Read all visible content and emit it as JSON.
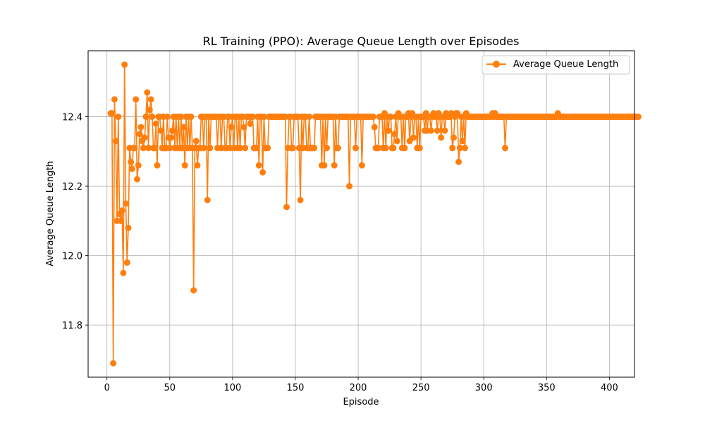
{
  "chart_data": {
    "type": "line",
    "title": "RL Training (PPO): Average Queue Length over Episodes",
    "xlabel": "Episode",
    "ylabel": "Average Queue Length",
    "xlim": [
      -15,
      420
    ],
    "ylim": [
      11.65,
      12.59
    ],
    "x_ticks": [
      0,
      50,
      100,
      150,
      200,
      250,
      300,
      350,
      400
    ],
    "y_ticks": [
      11.8,
      12.0,
      12.2,
      12.4
    ],
    "y_tick_labels": [
      "11.8",
      "12.0",
      "12.2",
      "12.4"
    ],
    "grid": true,
    "legend_position": "top-right",
    "series": [
      {
        "name": "Average Queue Length",
        "color": "#ff7f0e",
        "marker": "circle",
        "y": [
          12.41,
          12.41,
          11.69,
          12.45,
          12.33,
          12.1,
          12.4,
          12.12,
          12.1,
          12.13,
          11.95,
          12.55,
          12.15,
          11.98,
          12.08,
          12.31,
          12.27,
          12.25,
          12.31,
          12.31,
          12.45,
          12.22,
          12.26,
          12.35,
          12.37,
          12.33,
          12.31,
          12.34,
          12.4,
          12.47,
          12.31,
          12.42,
          12.45,
          12.4,
          12.31,
          12.31,
          12.38,
          12.26,
          12.4,
          12.4,
          12.36,
          12.31,
          12.4,
          12.31,
          12.31,
          12.4,
          12.34,
          12.31,
          12.34,
          12.36,
          12.4,
          12.31,
          12.4,
          12.31,
          12.4,
          12.31,
          12.4,
          12.31,
          12.37,
          12.26,
          12.4,
          12.31,
          12.4,
          12.31,
          12.4,
          12.31,
          11.9,
          12.31,
          12.33,
          12.26,
          12.31,
          12.31,
          12.4,
          12.4,
          12.31,
          12.4,
          12.4,
          12.16,
          12.4,
          12.31,
          12.4,
          12.4,
          12.4,
          12.4,
          12.4,
          12.31,
          12.4,
          12.4,
          12.31,
          12.4,
          12.4,
          12.31,
          12.31,
          12.4,
          12.4,
          12.31,
          12.37,
          12.4,
          12.31,
          12.4,
          12.4,
          12.31,
          12.4,
          12.31,
          12.4,
          12.4,
          12.37,
          12.31,
          12.4,
          12.4,
          12.4,
          12.38,
          12.4,
          12.4,
          12.31,
          12.31,
          12.31,
          12.4,
          12.26,
          12.4,
          12.4,
          12.24,
          12.4,
          12.31,
          12.31,
          12.31,
          12.4,
          12.4,
          12.4,
          12.4,
          12.4,
          12.4,
          12.4,
          12.4,
          12.4,
          12.4,
          12.4,
          12.4,
          12.4,
          12.4,
          12.14,
          12.31,
          12.4,
          12.4,
          12.31,
          12.31,
          12.4,
          12.4,
          12.4,
          12.4,
          12.31,
          12.16,
          12.4,
          12.31,
          12.4,
          12.4,
          12.31,
          12.31,
          12.4,
          12.31,
          12.31,
          12.31,
          12.31,
          12.4,
          12.4,
          12.4,
          12.4,
          12.4,
          12.26,
          12.4,
          12.26,
          12.4,
          12.31,
          12.4,
          12.4,
          12.4,
          12.4,
          12.4,
          12.26,
          12.4,
          12.31,
          12.31,
          12.4,
          12.4,
          12.4,
          12.4,
          12.4,
          12.4,
          12.4,
          12.4,
          12.2,
          12.4,
          12.4,
          12.4,
          12.4,
          12.31,
          12.4,
          12.4,
          12.4,
          12.4,
          12.26,
          12.4,
          12.4,
          12.4,
          12.4,
          12.4,
          12.4,
          12.4,
          12.4,
          12.4,
          12.37,
          12.31,
          12.31,
          12.31,
          12.4,
          12.4,
          12.4,
          12.31,
          12.41,
          12.31,
          12.4,
          12.36,
          12.4,
          12.4,
          12.31,
          12.31,
          12.35,
          12.4,
          12.33,
          12.41,
          12.4,
          12.4,
          12.31,
          12.4,
          12.31,
          12.4,
          12.4,
          12.41,
          12.33,
          12.4,
          12.41,
          12.34,
          12.4,
          12.4,
          12.31,
          12.4,
          12.31,
          12.4,
          12.4,
          12.4,
          12.36,
          12.41,
          12.36,
          12.4,
          12.4,
          12.36,
          12.4,
          12.41,
          12.4,
          12.4,
          12.36,
          12.41,
          12.4,
          12.34,
          12.4,
          12.4,
          12.36,
          12.41,
          12.4,
          12.4,
          12.4,
          12.41,
          12.31,
          12.34,
          12.4,
          12.41,
          12.41,
          12.27,
          12.31,
          12.4,
          12.33,
          12.4,
          12.31,
          12.41,
          12.4,
          12.4,
          12.4,
          12.4,
          12.4,
          12.4,
          12.4,
          12.4,
          12.4,
          12.4,
          12.4,
          12.4,
          12.4,
          12.4,
          12.4,
          12.4,
          12.4,
          12.4,
          12.4,
          12.4,
          12.41,
          12.4,
          12.41,
          12.4,
          12.4,
          12.4,
          12.4,
          12.4,
          12.4,
          12.4,
          12.31,
          12.4,
          12.4,
          12.4,
          12.4,
          12.4,
          12.4,
          12.4,
          12.4,
          12.4,
          12.4,
          12.4,
          12.4,
          12.4,
          12.4,
          12.4,
          12.4,
          12.4,
          12.4,
          12.4,
          12.4,
          12.4,
          12.4,
          12.4,
          12.4,
          12.4,
          12.4,
          12.4,
          12.4,
          12.4,
          12.4,
          12.4,
          12.4,
          12.4,
          12.4,
          12.4,
          12.4,
          12.4,
          12.4,
          12.4,
          12.4,
          12.4,
          12.41,
          12.4,
          12.4,
          12.4,
          12.4,
          12.4,
          12.4,
          12.4,
          12.4,
          12.4,
          12.4,
          12.4,
          12.4,
          12.4,
          12.4,
          12.4,
          12.4,
          12.4,
          12.4,
          12.4,
          12.4,
          12.4,
          12.4,
          12.4,
          12.4,
          12.4,
          12.4,
          12.4,
          12.4,
          12.4,
          12.4,
          12.4,
          12.4,
          12.4,
          12.4,
          12.4,
          12.4,
          12.4,
          12.4,
          12.4,
          12.4,
          12.4,
          12.4,
          12.4,
          12.4,
          12.4,
          12.4,
          12.4,
          12.4,
          12.4,
          12.4,
          12.4,
          12.4,
          12.4,
          12.4,
          12.4,
          12.4,
          12.4,
          12.4,
          12.4,
          12.4,
          12.4,
          12.4,
          12.4,
          12.4
        ]
      }
    ]
  }
}
